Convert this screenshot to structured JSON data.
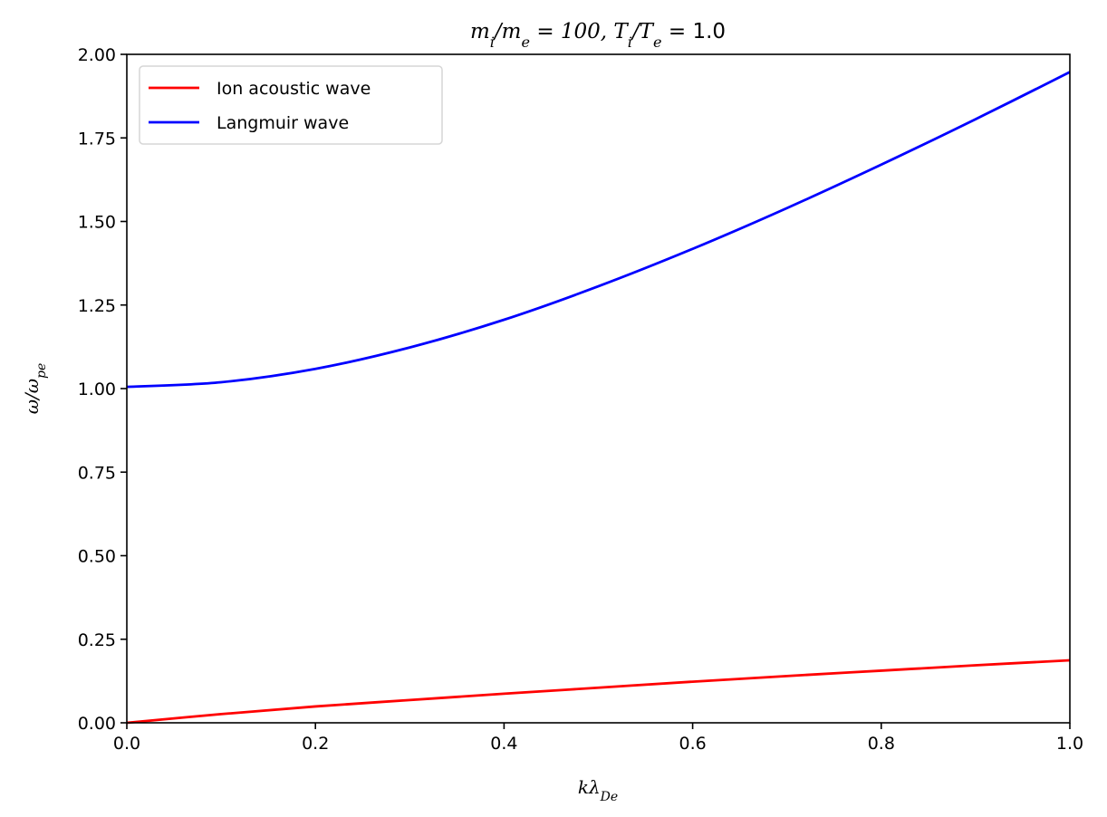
{
  "chart_data": {
    "type": "line",
    "title": "m_i/m_e = 100, T_i/T_e = 1.0",
    "xlabel": "kλ_{De}",
    "ylabel": "ω/ω_{pe}",
    "xlim": [
      0,
      1
    ],
    "ylim": [
      0,
      2
    ],
    "xticks": [
      "0.0",
      "0.2",
      "0.4",
      "0.6",
      "0.8",
      "1.0"
    ],
    "xtick_values": [
      0,
      0.2,
      0.4,
      0.6,
      0.8,
      1.0
    ],
    "yticks": [
      "0.00",
      "0.25",
      "0.50",
      "0.75",
      "1.00",
      "1.25",
      "1.50",
      "1.75",
      "2.00"
    ],
    "ytick_values": [
      0,
      0.25,
      0.5,
      0.75,
      1.0,
      1.25,
      1.5,
      1.75,
      2.0
    ],
    "grid": false,
    "legend_position": "top-left",
    "x": [
      0,
      0.1,
      0.2,
      0.3,
      0.4,
      0.5,
      0.6,
      0.7,
      0.8,
      0.9,
      1.0
    ],
    "series": [
      {
        "name": "Ion acoustic wave",
        "color": "#ff0000",
        "values": [
          0,
          0.026,
          0.049,
          0.068,
          0.087,
          0.105,
          0.123,
          0.14,
          0.156,
          0.172,
          0.187
        ]
      },
      {
        "name": "Langmuir wave",
        "color": "#0000ff",
        "values": [
          1.005,
          1.019,
          1.059,
          1.123,
          1.206,
          1.306,
          1.418,
          1.54,
          1.67,
          1.806,
          1.947
        ]
      }
    ]
  }
}
